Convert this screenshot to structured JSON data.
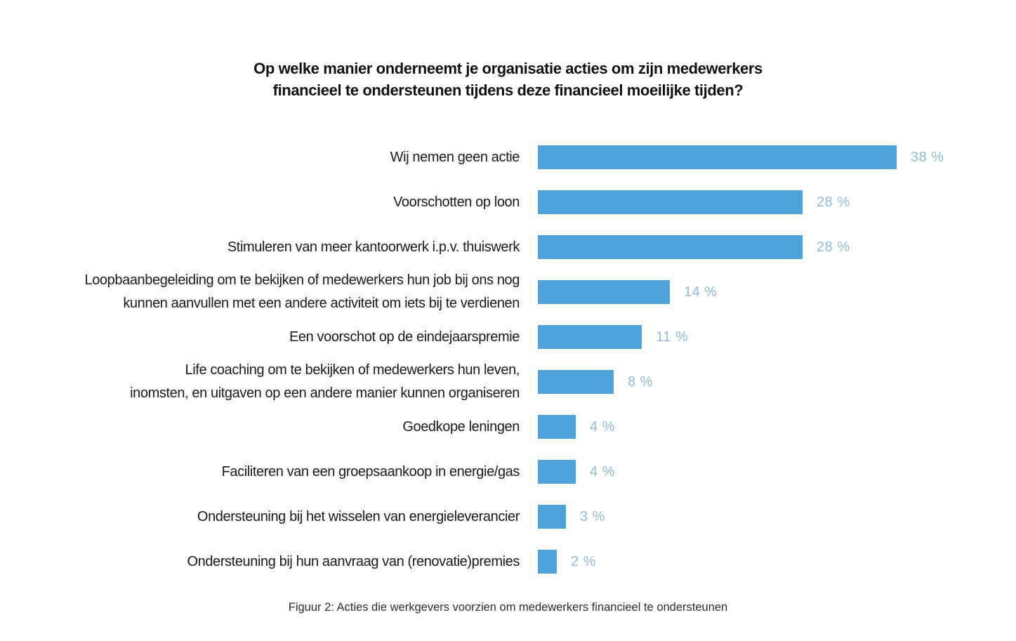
{
  "chart_data": {
    "type": "bar",
    "orientation": "horizontal",
    "title": "Op welke manier onderneemt je organisatie acties om zijn medewerkers\nfinancieel te ondersteunen tijdens deze financieel moeilijke tijden?",
    "categories": [
      "Wij nemen geen actie",
      "Voorschotten op loon",
      "Stimuleren van meer kantoorwerk i.p.v. thuiswerk",
      "Loopbaanbegeleiding om te bekijken of medewerkers hun job bij ons nog\nkunnen aanvullen met een andere activiteit  om iets bij te verdienen",
      "Een voorschot op de eindejaarspremie",
      "Life coaching om te bekijken of medewerkers hun leven,\ninomsten, en uitgaven op een andere manier kunnen organiseren",
      "Goedkope leningen",
      "Faciliteren van een groepsaankoop in energie/gas",
      "Ondersteuning bij het wisselen van energieleverancier",
      "Ondersteuning bij hun aanvraag van (renovatie)premies"
    ],
    "values": [
      38,
      28,
      28,
      14,
      11,
      8,
      4,
      4,
      3,
      2
    ],
    "value_labels": [
      "38 %",
      "28 %",
      "28 %",
      "14 %",
      "11 %",
      "8 %",
      "4 %",
      "4 %",
      "3 %",
      "2 %"
    ],
    "unit": "%",
    "xlim": [
      0,
      40
    ],
    "grid": false,
    "legend": "none",
    "bar_color": "#4ba3da",
    "value_label_color": "#8fbcd9",
    "caption": "Figuur 2: Acties die werkgevers voorzien om medewerkers financieel te ondersteunen"
  }
}
